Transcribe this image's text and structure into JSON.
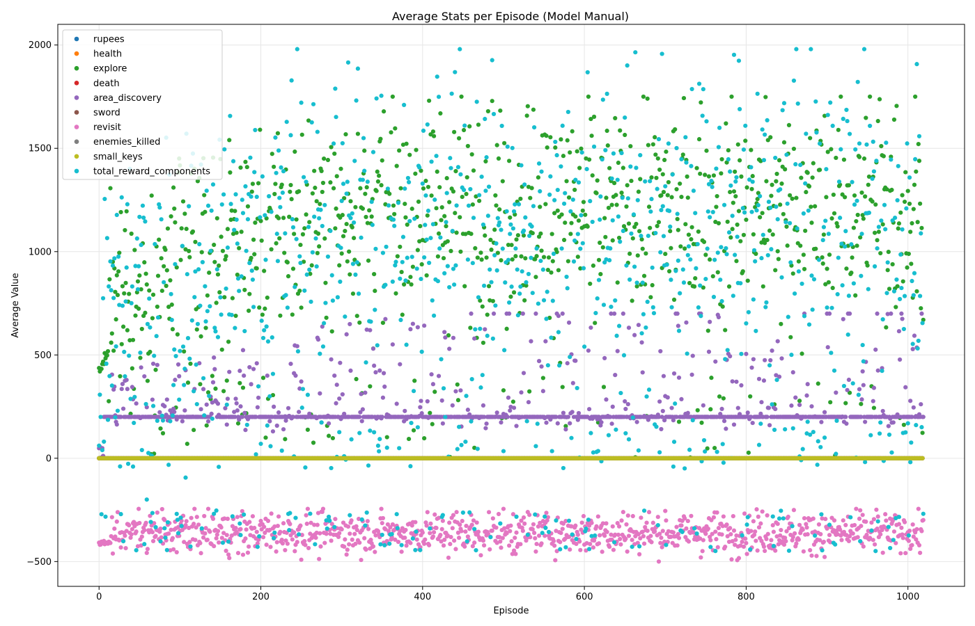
{
  "chart_data": {
    "type": "scatter",
    "title": "Average Stats per Episode (Model Manual)",
    "xlabel": "Episode",
    "ylabel": "Average Value",
    "xlim": [
      -51,
      1070
    ],
    "ylim": [
      -620,
      2100
    ],
    "xticks": [
      0,
      200,
      400,
      600,
      800,
      1000
    ],
    "yticks": [
      -500,
      0,
      500,
      1000,
      1500,
      2000
    ],
    "grid": true,
    "legend_position": "top-left",
    "episodes": 1020,
    "series": [
      {
        "name": "rupees",
        "color": "#1f77b4",
        "summary": {
          "baseline": 0
        }
      },
      {
        "name": "health",
        "color": "#ff7f0e",
        "summary": {
          "baseline": 0
        }
      },
      {
        "name": "explore",
        "color": "#2ca02c",
        "summary": {
          "start": 400,
          "range": [
            0,
            1750
          ],
          "typical_range": [
            400,
            1450
          ]
        }
      },
      {
        "name": "death",
        "color": "#d62728",
        "summary": {
          "baseline": 0
        }
      },
      {
        "name": "area_discovery",
        "color": "#9467bd",
        "summary": {
          "baseline": 200,
          "range": [
            0,
            700
          ]
        }
      },
      {
        "name": "sword",
        "color": "#8c564b",
        "summary": {
          "baseline": 0
        }
      },
      {
        "name": "revisit",
        "color": "#e377c2",
        "summary": {
          "range": [
            -500,
            -250
          ],
          "center": -370
        }
      },
      {
        "name": "enemies_killed",
        "color": "#7f7f7f",
        "summary": {
          "baseline": 0
        }
      },
      {
        "name": "small_keys",
        "color": "#bcbd22",
        "summary": {
          "baseline": 0
        }
      },
      {
        "name": "total_reward_components",
        "color": "#17becf",
        "summary": {
          "range": [
            -500,
            1980
          ],
          "typical_range": [
            0,
            1500
          ]
        }
      }
    ]
  }
}
